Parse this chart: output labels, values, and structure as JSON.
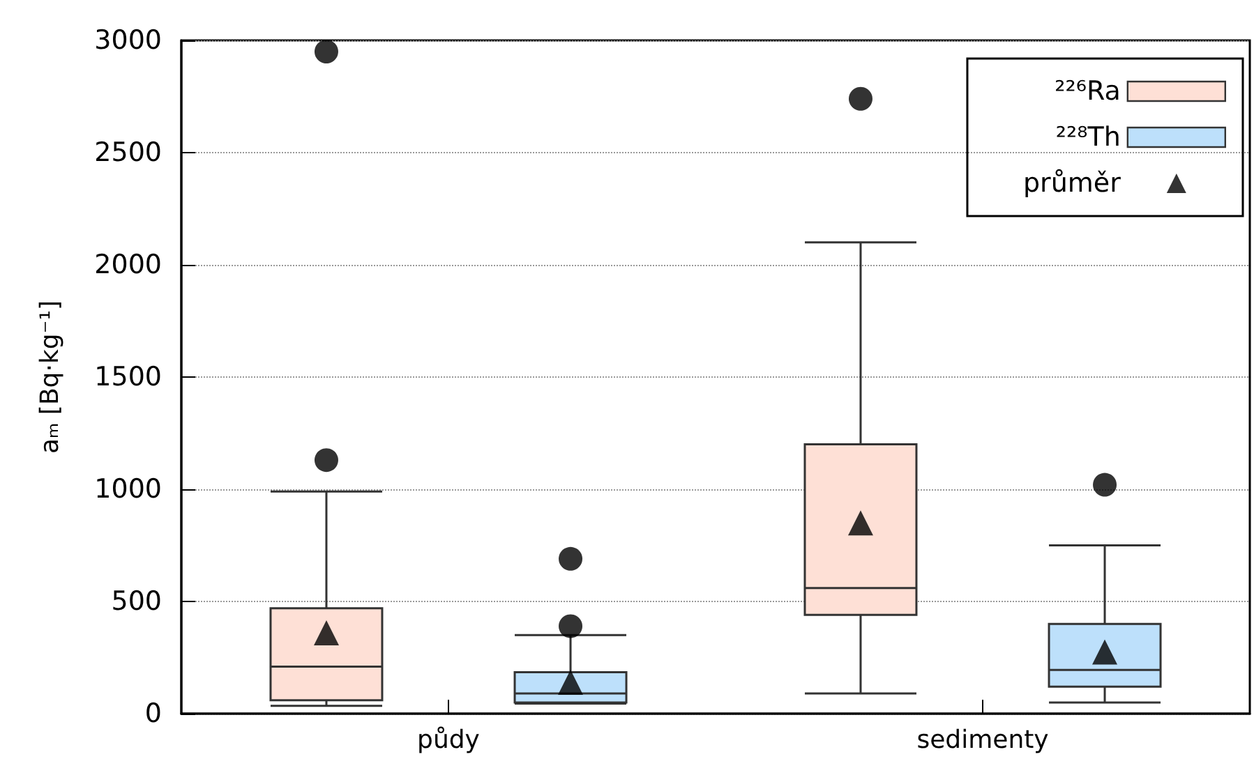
{
  "chart_data": {
    "type": "box",
    "categories": [
      "půdy",
      "sedimenty"
    ],
    "ylabel": "aₘ [Bq·kg⁻¹]",
    "ylim": [
      0,
      3000
    ],
    "yticks": [
      0,
      500,
      1000,
      1500,
      2000,
      2500,
      3000
    ],
    "grid": "y",
    "legend": "top right",
    "series": [
      {
        "name": "²²⁶Ra",
        "color": "#fee0d6",
        "boxes": [
          {
            "low": 35,
            "q1": 60,
            "median": 210,
            "q3": 470,
            "high": 990,
            "outliers": [
              1130,
              2950
            ]
          },
          {
            "low": 90,
            "q1": 440,
            "median": 560,
            "q3": 1200,
            "high": 2100,
            "outliers": [
              2740
            ]
          }
        ]
      },
      {
        "name": "²²⁸Th",
        "color": "#bde0fb",
        "boxes": [
          {
            "low": 45,
            "q1": 50,
            "median": 90,
            "q3": 185,
            "high": 350,
            "outliers": [
              390,
              690
            ]
          },
          {
            "low": 50,
            "q1": 120,
            "median": 195,
            "q3": 400,
            "high": 750,
            "outliers": [
              1020
            ]
          }
        ]
      },
      {
        "name": "průměr",
        "type": "scatter",
        "marker": "triangle",
        "color": "#000000",
        "x": [
          "půdy",
          "půdy",
          "sedimenty",
          "sedimenty"
        ],
        "values": [
          360,
          140,
          850,
          275
        ]
      }
    ]
  }
}
